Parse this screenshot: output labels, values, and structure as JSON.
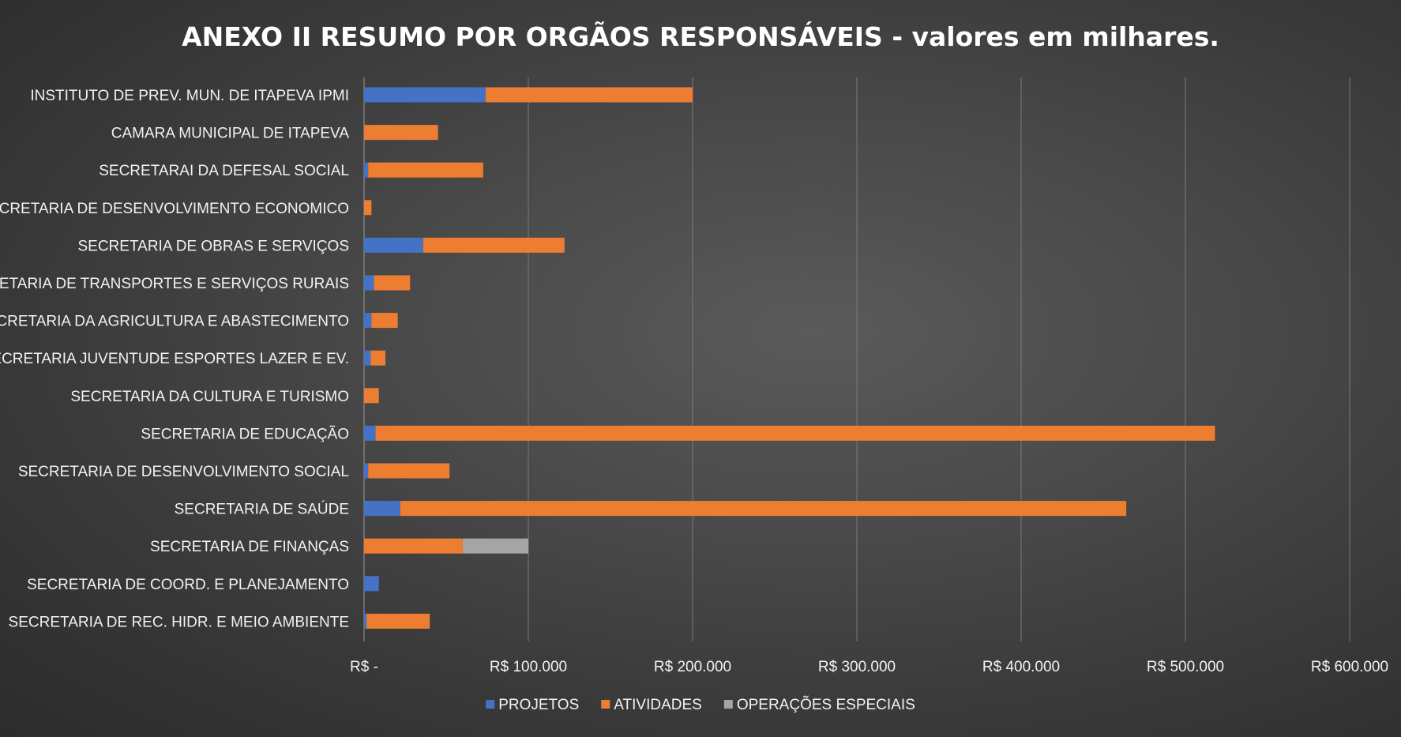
{
  "chart_data": {
    "type": "bar",
    "orientation": "horizontal",
    "stacked": true,
    "title": "ANEXO II  RESUMO POR ORGÃOS RESPONSÁVEIS - valores em milhares.",
    "categories": [
      "INSTITUTO DE PREV. MUN. DE ITAPEVA IPMI",
      "CAMARA MUNICIPAL DE ITAPEVA",
      "SECRETARAI DA DEFESAL SOCIAL",
      "SECRETARIA DE DESENVOLVIMENTO ECONOMICO",
      "SECRETARIA DE OBRAS E SERVIÇOS",
      "SECRETARIA DE TRANSPORTES E SERVIÇOS RURAIS",
      "SECRETARIA DA AGRICULTURA E ABASTECIMENTO",
      "SECRETARIA JUVENTUDE ESPORTES LAZER E EV.",
      "SECRETARIA DA CULTURA E TURISMO",
      "SECRETARIA DE EDUCAÇÃO",
      "SECRETARIA DE DESENVOLVIMENTO SOCIAL",
      "SECRETARIA DE SAÚDE",
      "SECRETARIA DE FINANÇAS",
      "SECRETARIA DE COORD. E PLANEJAMENTO",
      "SECRETARIA DE REC. HIDR. E MEIO AMBIENTE"
    ],
    "series": [
      {
        "name": "PROJETOS",
        "color": "#4472C4",
        "values": [
          74000,
          0,
          2500,
          0,
          36000,
          6000,
          4500,
          4000,
          0,
          7000,
          2500,
          22000,
          0,
          9000,
          1500
        ]
      },
      {
        "name": "ATIVIDADES",
        "color": "#ED7D31",
        "values": [
          126000,
          45000,
          70000,
          4500,
          86000,
          22000,
          16000,
          9000,
          9000,
          511000,
          49500,
          442000,
          60000,
          0,
          38500
        ]
      },
      {
        "name": "OPERAÇÕES ESPECIAIS",
        "color": "#A5A5A5",
        "values": [
          0,
          0,
          0,
          0,
          0,
          0,
          0,
          0,
          0,
          0,
          0,
          0,
          40000,
          0,
          0
        ]
      }
    ],
    "xlim": [
      0,
      600000
    ],
    "x_ticks": [
      0,
      100000,
      200000,
      300000,
      400000,
      500000,
      600000
    ],
    "x_tick_labels": [
      "R$ -",
      "R$ 100.000",
      "R$ 200.000",
      "R$ 300.000",
      "R$ 400.000",
      "R$ 500.000",
      "R$ 600.000"
    ],
    "grid": true,
    "legend": "bottom"
  }
}
